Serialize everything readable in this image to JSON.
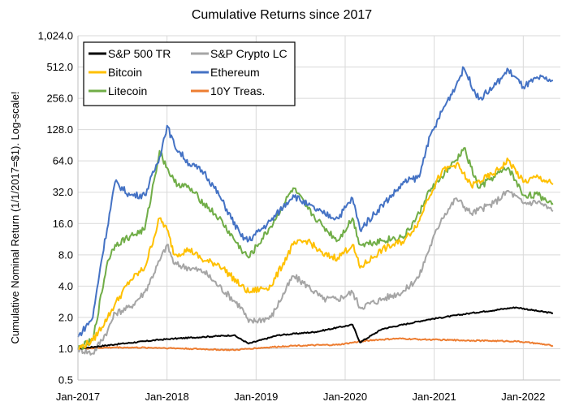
{
  "chart_data": {
    "type": "line",
    "title": "Cumulative Returns since 2017",
    "xlabel": "",
    "ylabel": "Cumulative Nominal Return (1/1/2017=$1). Log-scale!",
    "y_scale": "log2",
    "ylim": [
      0.5,
      1024
    ],
    "xlim": [
      "2017-01",
      "2022-06"
    ],
    "y_ticks": [
      {
        "value": 0.5,
        "label": "0.5"
      },
      {
        "value": 1,
        "label": "1.0"
      },
      {
        "value": 2,
        "label": "2.0"
      },
      {
        "value": 4,
        "label": "4.0"
      },
      {
        "value": 8,
        "label": "8.0"
      },
      {
        "value": 16,
        "label": "16.0"
      },
      {
        "value": 32,
        "label": "32.0"
      },
      {
        "value": 64,
        "label": "64.0"
      },
      {
        "value": 128,
        "label": "128.0"
      },
      {
        "value": 256,
        "label": "256.0"
      },
      {
        "value": 512,
        "label": "512.0"
      },
      {
        "value": 1024,
        "label": "1,024.0"
      }
    ],
    "x_ticks": [
      {
        "value": "2017-01",
        "label": "Jan-2017"
      },
      {
        "value": "2018-01",
        "label": "Jan-2018"
      },
      {
        "value": "2019-01",
        "label": "Jan-2019"
      },
      {
        "value": "2020-01",
        "label": "Jan-2020"
      },
      {
        "value": "2021-01",
        "label": "Jan-2021"
      },
      {
        "value": "2022-01",
        "label": "Jan-2022"
      }
    ],
    "grid": true,
    "legend_position": "top-left",
    "series": [
      {
        "name": "S&P 500 TR",
        "color": "#000000",
        "x": [
          "2017-01",
          "2017-06",
          "2017-12",
          "2018-02",
          "2018-06",
          "2018-10",
          "2018-12",
          "2019-04",
          "2019-09",
          "2019-12",
          "2020-02",
          "2020-03",
          "2020-06",
          "2020-12",
          "2021-06",
          "2021-12",
          "2022-03",
          "2022-05"
        ],
        "values": [
          1.0,
          1.1,
          1.22,
          1.25,
          1.3,
          1.35,
          1.12,
          1.35,
          1.45,
          1.6,
          1.7,
          1.15,
          1.55,
          1.9,
          2.2,
          2.5,
          2.3,
          2.2
        ]
      },
      {
        "name": "S&P Crypto LC",
        "color": "#a5a5a5",
        "x": [
          "2017-01",
          "2017-03",
          "2017-05",
          "2017-06",
          "2017-08",
          "2017-10",
          "2017-12",
          "2018-01",
          "2018-02",
          "2018-04",
          "2018-06",
          "2018-08",
          "2018-11",
          "2018-12",
          "2019-03",
          "2019-06",
          "2019-08",
          "2019-10",
          "2019-12",
          "2020-02",
          "2020-03",
          "2020-06",
          "2020-09",
          "2020-11",
          "2020-12",
          "2021-02",
          "2021-04",
          "2021-06",
          "2021-09",
          "2021-11",
          "2022-01",
          "2022-03",
          "2022-05"
        ],
        "values": [
          1.0,
          0.9,
          1.5,
          2.2,
          2.5,
          3.5,
          7.0,
          10.0,
          6.5,
          6.0,
          5.5,
          4.0,
          2.5,
          1.8,
          2.0,
          5.0,
          4.0,
          3.0,
          3.0,
          3.5,
          2.5,
          3.0,
          3.6,
          5.0,
          8.0,
          18.0,
          28.0,
          20.0,
          25.0,
          33.0,
          25.0,
          26.0,
          21.0
        ]
      },
      {
        "name": "Bitcoin",
        "color": "#ffc000",
        "x": [
          "2017-01",
          "2017-03",
          "2017-05",
          "2017-06",
          "2017-08",
          "2017-10",
          "2017-12",
          "2018-01",
          "2018-02",
          "2018-04",
          "2018-06",
          "2018-08",
          "2018-11",
          "2018-12",
          "2019-03",
          "2019-06",
          "2019-08",
          "2019-10",
          "2019-12",
          "2020-02",
          "2020-03",
          "2020-06",
          "2020-09",
          "2020-11",
          "2020-12",
          "2021-02",
          "2021-04",
          "2021-06",
          "2021-09",
          "2021-11",
          "2022-01",
          "2022-03",
          "2022-05"
        ],
        "values": [
          1.0,
          1.2,
          2.0,
          2.7,
          4.5,
          6.0,
          18.0,
          14.0,
          8.0,
          9.0,
          7.0,
          6.5,
          4.0,
          3.5,
          4.0,
          10.0,
          11.0,
          8.0,
          7.5,
          10.0,
          6.0,
          9.0,
          11.0,
          17.0,
          27.0,
          50.0,
          60.0,
          37.0,
          48.0,
          65.0,
          40.0,
          45.0,
          38.0
        ]
      },
      {
        "name": "Ethereum",
        "color": "#4472c4",
        "x": [
          "2017-01",
          "2017-03",
          "2017-04",
          "2017-06",
          "2017-08",
          "2017-10",
          "2017-12",
          "2018-01",
          "2018-02",
          "2018-04",
          "2018-06",
          "2018-08",
          "2018-11",
          "2018-12",
          "2019-03",
          "2019-06",
          "2019-08",
          "2019-10",
          "2019-12",
          "2020-02",
          "2020-03",
          "2020-06",
          "2020-09",
          "2020-11",
          "2020-12",
          "2021-02",
          "2021-04",
          "2021-05",
          "2021-07",
          "2021-09",
          "2021-11",
          "2022-01",
          "2022-03",
          "2022-05"
        ],
        "values": [
          1.3,
          2.0,
          6.0,
          40.0,
          30.0,
          30.0,
          70.0,
          140.0,
          90.0,
          60.0,
          50.0,
          30.0,
          12.0,
          11.0,
          17.0,
          30.0,
          24.0,
          20.0,
          18.0,
          28.0,
          14.0,
          24.0,
          40.0,
          45.0,
          90.0,
          190.0,
          350.0,
          500.0,
          250.0,
          330.0,
          480.0,
          330.0,
          400.0,
          380.0
        ]
      },
      {
        "name": "Litecoin",
        "color": "#70ad47",
        "x": [
          "2017-01",
          "2017-03",
          "2017-05",
          "2017-06",
          "2017-08",
          "2017-10",
          "2017-12",
          "2018-01",
          "2018-02",
          "2018-04",
          "2018-06",
          "2018-08",
          "2018-11",
          "2018-12",
          "2019-03",
          "2019-06",
          "2019-08",
          "2019-10",
          "2019-12",
          "2020-02",
          "2020-03",
          "2020-06",
          "2020-09",
          "2020-11",
          "2020-12",
          "2021-02",
          "2021-04",
          "2021-05",
          "2021-07",
          "2021-09",
          "2021-11",
          "2022-01",
          "2022-03",
          "2022-05"
        ],
        "values": [
          1.0,
          1.2,
          7.0,
          10.0,
          12.0,
          14.0,
          80.0,
          55.0,
          40.0,
          35.0,
          25.0,
          18.0,
          9.0,
          7.5,
          15.0,
          35.0,
          22.0,
          15.0,
          11.0,
          18.0,
          10.0,
          11.0,
          12.0,
          20.0,
          30.0,
          45.0,
          65.0,
          85.0,
          35.0,
          45.0,
          55.0,
          30.0,
          30.0,
          25.0
        ]
      },
      {
        "name": "10Y Treas.",
        "color": "#ed7d31",
        "x": [
          "2017-01",
          "2017-06",
          "2017-12",
          "2018-06",
          "2018-10",
          "2018-12",
          "2019-06",
          "2019-12",
          "2020-04",
          "2020-08",
          "2021-01",
          "2021-06",
          "2021-12",
          "2022-03",
          "2022-05"
        ],
        "values": [
          1.0,
          1.03,
          1.02,
          0.99,
          0.97,
          1.0,
          1.07,
          1.09,
          1.2,
          1.25,
          1.22,
          1.2,
          1.18,
          1.12,
          1.07
        ]
      }
    ]
  }
}
